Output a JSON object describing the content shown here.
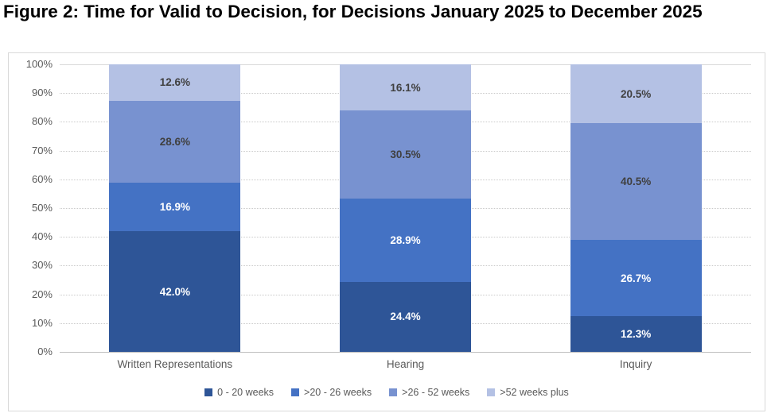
{
  "title": "Figure 2: Time for Valid to Decision, for Decisions January 2025 to December 2025",
  "chart_data": {
    "type": "bar",
    "subtype": "stacked-percentage",
    "title": "Figure 2: Time for Valid to Decision, for Decisions January 2025 to December 2025",
    "categories": [
      "Written Representations",
      "Hearing",
      "Inquiry"
    ],
    "series": [
      {
        "name": "0 - 20 weeks",
        "color": "#2E5597",
        "label_color": "#FFFFFF",
        "values": [
          42.0,
          24.4,
          12.3
        ]
      },
      {
        "name": ">20 - 26 weeks",
        "color": "#4472C4",
        "label_color": "#FFFFFF",
        "values": [
          16.9,
          28.9,
          26.7
        ]
      },
      {
        "name": ">26 - 52 weeks",
        "color": "#7892D0",
        "label_color": "#404040",
        "values": [
          28.6,
          30.5,
          40.5
        ]
      },
      {
        "name": ">52 weeks plus",
        "color": "#B4C1E4",
        "label_color": "#404040",
        "values": [
          12.6,
          16.1,
          20.5
        ]
      }
    ],
    "value_labels": [
      [
        "42.0%",
        "24.4%",
        "12.3%"
      ],
      [
        "16.9%",
        "28.9%",
        "26.7%"
      ],
      [
        "28.6%",
        "30.5%",
        "40.5%"
      ],
      [
        "12.6%",
        "16.1%",
        "20.5%"
      ]
    ],
    "xlabel": "",
    "ylabel": "",
    "ylim": [
      0,
      100
    ],
    "y_ticks": [
      "0%",
      "10%",
      "20%",
      "30%",
      "40%",
      "50%",
      "60%",
      "70%",
      "80%",
      "90%",
      "100%"
    ],
    "value_suffix": "%",
    "grid": true,
    "legend_position": "bottom",
    "colors": {
      "axis_text": "#595959",
      "gridline": "#CACACA",
      "axis_line": "#BFBFBF",
      "chart_border": "#D9D9D9",
      "title_text": "#000000"
    }
  }
}
